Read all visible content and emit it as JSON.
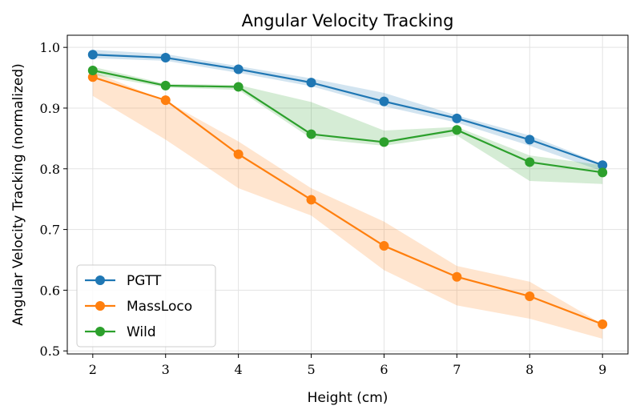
{
  "chart_data": {
    "type": "line",
    "title": "Angular Velocity Tracking",
    "xlabel": "Height (cm)",
    "ylabel": "Angular Velocity Tracking (normalized)",
    "x": [
      2,
      3,
      4,
      5,
      6,
      7,
      8,
      9
    ],
    "xlim": [
      1.65,
      9.35
    ],
    "ylim": [
      0.495,
      1.02
    ],
    "xticks": [
      2,
      3,
      4,
      5,
      6,
      7,
      8,
      9
    ],
    "yticks": [
      0.5,
      0.6,
      0.7,
      0.8,
      0.9,
      1.0
    ],
    "ytick_labels": [
      "0.5",
      "0.6",
      "0.7",
      "0.8",
      "0.9",
      "1.0"
    ],
    "grid": true,
    "legend_position": "lower-left",
    "series": [
      {
        "name": "PGTT",
        "color": "#1f77b4",
        "values": [
          0.988,
          0.983,
          0.964,
          0.942,
          0.911,
          0.883,
          0.848,
          0.806
        ],
        "band_low": [
          0.982,
          0.978,
          0.958,
          0.936,
          0.903,
          0.876,
          0.838,
          0.796
        ],
        "band_high": [
          0.996,
          0.989,
          0.969,
          0.949,
          0.925,
          0.888,
          0.855,
          0.808
        ]
      },
      {
        "name": "MassLoco",
        "color": "#ff7f0e",
        "values": [
          0.951,
          0.913,
          0.824,
          0.749,
          0.673,
          0.622,
          0.59,
          0.544
        ],
        "band_low": [
          0.92,
          0.848,
          0.768,
          0.723,
          0.633,
          0.575,
          0.553,
          0.52
        ],
        "band_high": [
          0.96,
          0.912,
          0.845,
          0.768,
          0.713,
          0.64,
          0.614,
          0.544
        ]
      },
      {
        "name": "Wild",
        "color": "#2ca02c",
        "values": [
          0.962,
          0.937,
          0.935,
          0.857,
          0.844,
          0.864,
          0.811,
          0.794
        ],
        "band_low": [
          0.955,
          0.934,
          0.93,
          0.85,
          0.838,
          0.855,
          0.78,
          0.775
        ],
        "band_high": [
          0.968,
          0.94,
          0.938,
          0.91,
          0.863,
          0.869,
          0.822,
          0.806
        ]
      }
    ]
  }
}
